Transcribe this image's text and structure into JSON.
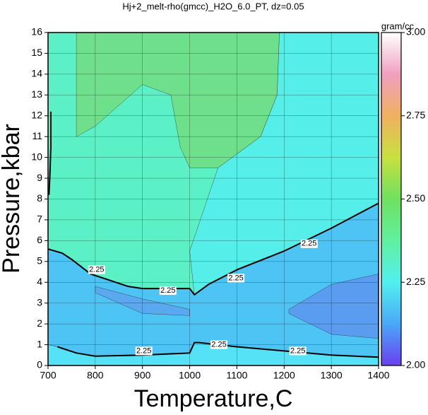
{
  "chart_data": {
    "type": "contour",
    "title": "Hj+2_melt-rho(gmcc)_H2O_6.0_PT, dz=0.05",
    "x_label": "Temperature,C",
    "y_label": "Pressure,kbar",
    "xlim": [
      700,
      1400
    ],
    "ylim": [
      0,
      16
    ],
    "xticks": [
      700,
      800,
      900,
      1000,
      1100,
      1200,
      1300,
      1400
    ],
    "yticks": [
      0,
      1,
      2,
      3,
      4,
      5,
      6,
      7,
      8,
      9,
      10,
      11,
      12,
      13,
      14,
      15,
      16
    ],
    "grid": true,
    "background_color": "#5cf0c6",
    "regions": [
      {
        "color": "#55eee8",
        "x": [
          1190,
          1400,
          1400,
          1300,
          1200,
          1100,
          1040,
          1010,
          1000,
          1060,
          1150,
          1185
        ],
        "y": [
          16,
          16,
          7.8,
          6.6,
          5.5,
          4.6,
          3.9,
          3.4,
          5.5,
          9.5,
          11,
          13
        ]
      },
      {
        "color": "#6ee08c",
        "x": [
          760,
          1190,
          1185,
          1150,
          1060,
          1000,
          980,
          960,
          900,
          800,
          760
        ],
        "y": [
          16,
          16,
          13,
          11,
          9.5,
          9.5,
          10.5,
          13,
          13.5,
          11.5,
          11
        ]
      },
      {
        "color": "#4ec4f4",
        "x": [
          700,
          730,
          750,
          790,
          870,
          900,
          1000,
          1010,
          1040,
          1100,
          1200,
          1300,
          1400,
          1400,
          1300,
          1200,
          1100,
          1020,
          1010,
          1000,
          900,
          800,
          760,
          720,
          700
        ],
        "y": [
          5.6,
          5.4,
          5.1,
          4.4,
          3.8,
          3.7,
          3.7,
          3.4,
          3.9,
          4.6,
          5.5,
          6.6,
          7.8,
          0.4,
          0.5,
          0.7,
          0.9,
          1.1,
          1.1,
          0.6,
          0.5,
          0.45,
          0.6,
          0.9,
          1.0
        ]
      },
      {
        "color": "#5a9cf0",
        "x": [
          1210,
          1300,
          1400,
          1400,
          1300,
          1210
        ],
        "y": [
          2.7,
          3.9,
          4.4,
          1.3,
          1.5,
          2.5
        ]
      },
      {
        "color": "#5aa8f0",
        "x": [
          800,
          900,
          1000,
          1000,
          900,
          800
        ],
        "y": [
          3.8,
          3.2,
          2.7,
          2.4,
          2.5,
          3.5
        ]
      },
      {
        "color": "#56e2f6",
        "x": [
          700,
          720,
          760,
          800,
          900,
          1000,
          1010,
          1020,
          1100,
          1200,
          1300,
          1400,
          1400,
          700
        ],
        "y": [
          1.0,
          0.9,
          0.6,
          0.45,
          0.5,
          0.6,
          1.1,
          1.1,
          0.9,
          0.7,
          0.5,
          0.4,
          0,
          0
        ]
      }
    ],
    "contour_lines": [
      {
        "level": {
          "value": 2.25,
          "label": "2.25"
        },
        "x": [
          700,
          730,
          750,
          790,
          870,
          900,
          1000,
          1010,
          1040,
          1100,
          1200,
          1300,
          1400
        ],
        "y": [
          5.6,
          5.4,
          5.1,
          4.4,
          3.8,
          3.7,
          3.7,
          3.4,
          3.9,
          4.6,
          5.5,
          6.6,
          7.8
        ],
        "label_x": [
          803,
          954,
          1098,
          1253
        ],
        "label_y": [
          4.6,
          3.6,
          4.2,
          5.85
        ]
      },
      {
        "level": {
          "value": 2.25,
          "label": "2.25"
        },
        "x": [
          720,
          760,
          800,
          900,
          1000,
          1010,
          1020,
          1100,
          1200,
          1300,
          1400
        ],
        "y": [
          0.9,
          0.6,
          0.45,
          0.5,
          0.6,
          1.1,
          1.1,
          0.9,
          0.7,
          0.5,
          0.4
        ],
        "label_x": [
          903,
          1062,
          1229
        ],
        "label_y": [
          0.7,
          1.0,
          0.7
        ]
      },
      {
        "level": {
          "value": 2.25,
          "label": "2.25"
        },
        "x": [
          706,
          706,
          704,
          702
        ],
        "y": [
          12.2,
          10.5,
          9.2,
          8.2
        ],
        "label_x": [],
        "label_y": []
      }
    ],
    "colorbar": {
      "label": "gram/cc",
      "lim": [
        2,
        3
      ],
      "ticks": [
        {
          "value": 2,
          "label": "2.00"
        },
        {
          "value": 2.25,
          "label": "2.25"
        },
        {
          "value": 2.5,
          "label": "2.50"
        },
        {
          "value": 2.75,
          "label": "2.75"
        },
        {
          "value": 3,
          "label": "3.00"
        }
      ],
      "colors": [
        "#6a3ff0",
        "#4aa8f8",
        "#52f0f0",
        "#60f0a0",
        "#70e060",
        "#c8e040",
        "#f0b060",
        "#f0a0c0",
        "#ffffff"
      ]
    }
  }
}
